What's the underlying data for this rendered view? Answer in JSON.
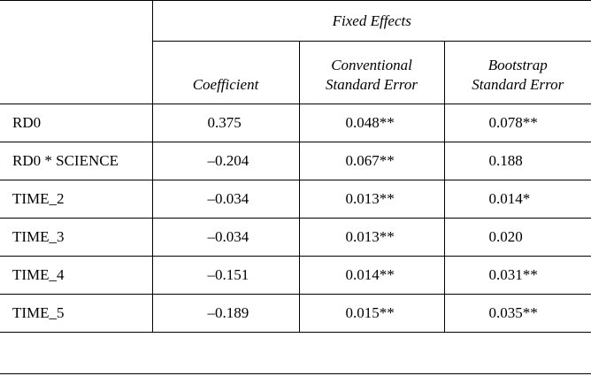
{
  "header": {
    "group_label": "Fixed Effects",
    "columns": {
      "coefficient": [
        "Coefficient"
      ],
      "conventional_se": [
        "Conventional",
        "Standard Error"
      ],
      "bootstrap_se": [
        "Bootstrap",
        "Standard Error"
      ]
    }
  },
  "rows": [
    {
      "label": "RD0",
      "coefficient": "0.375",
      "conventional_se": "0.048**",
      "bootstrap_se": "0.078**"
    },
    {
      "label": "RD0 * SCIENCE",
      "coefficient": "–0.204",
      "conventional_se": "0.067**",
      "bootstrap_se": "0.188"
    },
    {
      "label": "TIME_2",
      "coefficient": "–0.034",
      "conventional_se": "0.013**",
      "bootstrap_se": "0.014*"
    },
    {
      "label": "TIME_3",
      "coefficient": "–0.034",
      "conventional_se": "0.013**",
      "bootstrap_se": "0.020"
    },
    {
      "label": "TIME_4",
      "coefficient": "–0.151",
      "conventional_se": "0.014**",
      "bootstrap_se": "0.031**"
    },
    {
      "label": "TIME_5",
      "coefficient": "–0.189",
      "conventional_se": "0.015**",
      "bootstrap_se": "0.035**"
    }
  ]
}
